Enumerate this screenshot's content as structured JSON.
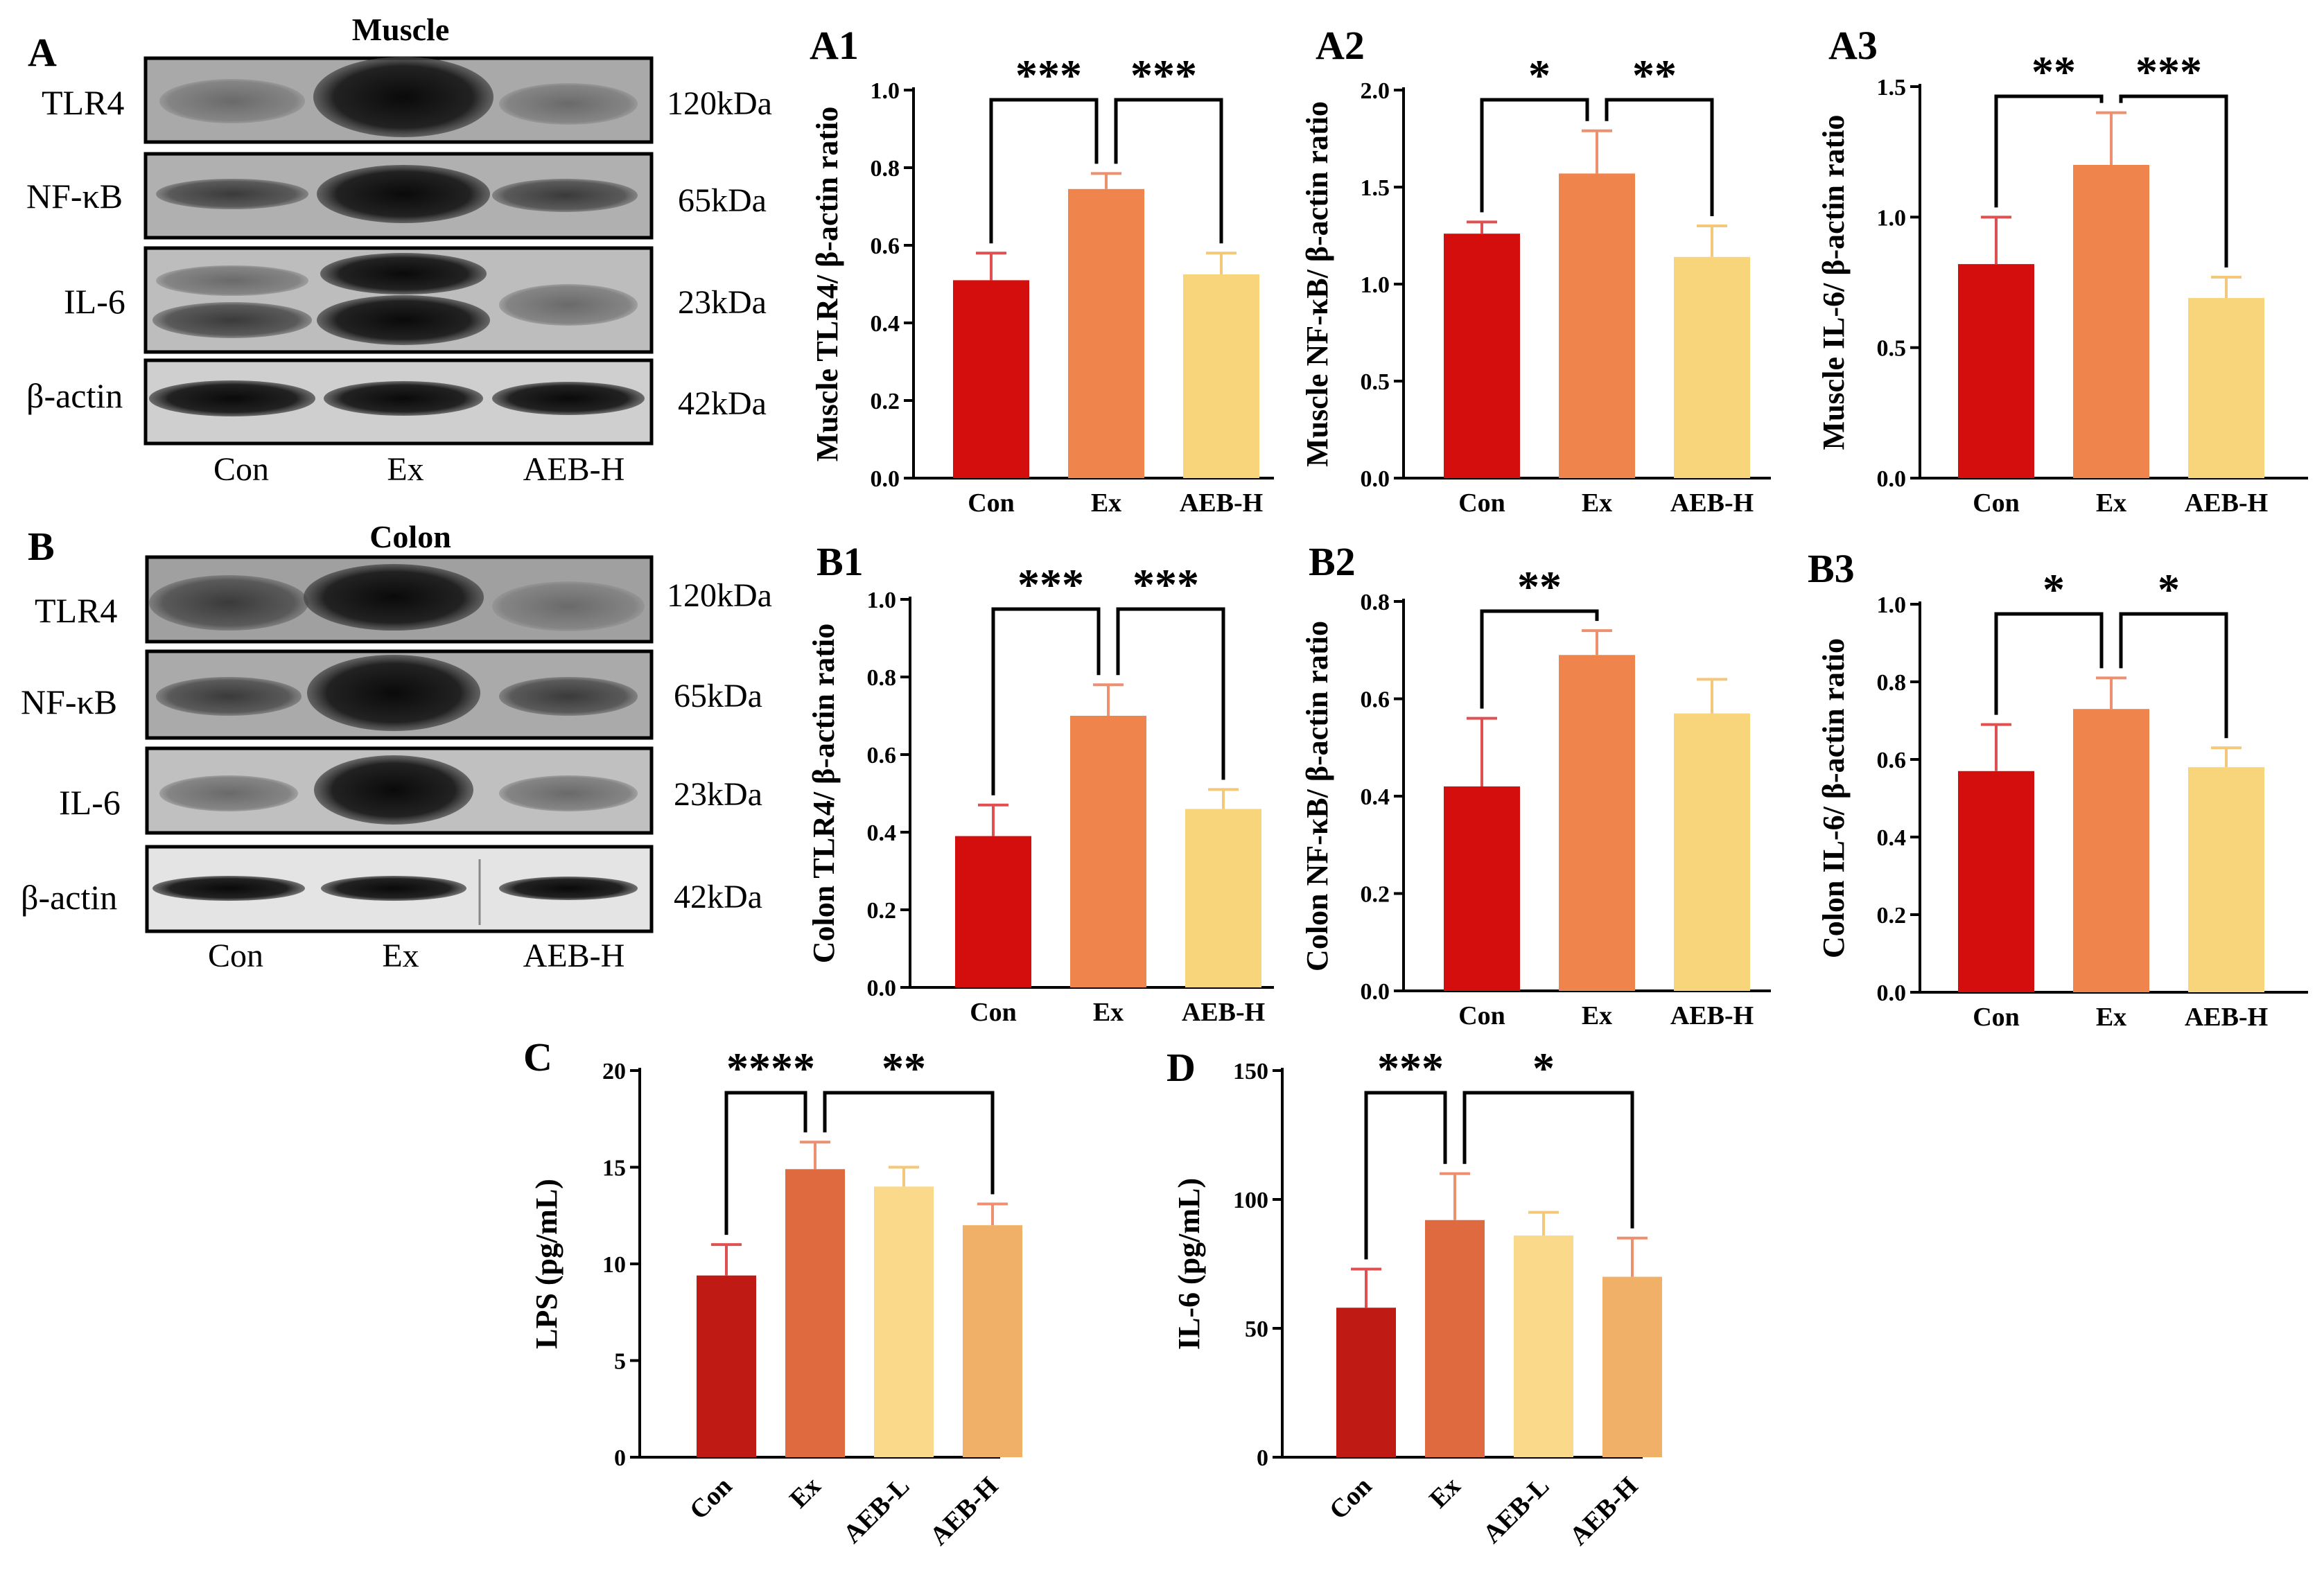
{
  "colors": {
    "con": "#d40d0d",
    "ex": "#ef844c",
    "aeb_h_top": "#f8d57a",
    "con_c": "#bf1b14",
    "ex_c": "#e06a40",
    "aeb_l_c": "#fbd98b",
    "aeb_h_c": "#f0b068",
    "err_con": "#e05050",
    "err_ex": "#ee9070",
    "err_aeb": "#f3c87a"
  },
  "blots": [
    {
      "letter": "A",
      "title": "Muscle",
      "proteins": [
        {
          "name": "TLR4",
          "kda": "120kDa"
        },
        {
          "name": "NF-κB",
          "kda": "65kDa"
        },
        {
          "name": "IL-6",
          "kda": "23kDa"
        },
        {
          "name": "β-actin",
          "kda": "42kDa"
        }
      ],
      "lanes": [
        "Con",
        "Ex",
        "AEB-H"
      ]
    },
    {
      "letter": "B",
      "title": "Colon",
      "proteins": [
        {
          "name": "TLR4",
          "kda": "120kDa"
        },
        {
          "name": "NF-κB",
          "kda": "65kDa"
        },
        {
          "name": "IL-6",
          "kda": "23kDa"
        },
        {
          "name": "β-actin",
          "kda": "42kDa"
        }
      ],
      "lanes": [
        "Con",
        "Ex",
        "AEB-H"
      ]
    }
  ],
  "chart_data": [
    {
      "id": "A1",
      "type": "bar",
      "ylabel": "Muscle TLR4/ β-actin ratio",
      "categories": [
        "Con",
        "Ex",
        "AEB-H"
      ],
      "values": [
        0.51,
        0.745,
        0.525
      ],
      "errors": [
        0.07,
        0.04,
        0.055
      ],
      "ylim": [
        0,
        1.0
      ],
      "ticks": [
        "0.0",
        "0.2",
        "0.4",
        "0.6",
        "0.8",
        "1.0"
      ],
      "sig": [
        {
          "from": 0,
          "to": 1,
          "label": "***"
        },
        {
          "from": 1,
          "to": 2,
          "label": "***"
        }
      ]
    },
    {
      "id": "A2",
      "type": "bar",
      "ylabel": "Muscle NF-κB/ β-actin ratio",
      "categories": [
        "Con",
        "Ex",
        "AEB-H"
      ],
      "values": [
        1.26,
        1.57,
        1.14
      ],
      "errors": [
        0.06,
        0.22,
        0.16
      ],
      "ylim": [
        0,
        2.0
      ],
      "ticks": [
        "0.0",
        "0.5",
        "1.0",
        "1.5",
        "2.0"
      ],
      "sig": [
        {
          "from": 0,
          "to": 1,
          "label": "*"
        },
        {
          "from": 1,
          "to": 2,
          "label": "**"
        }
      ]
    },
    {
      "id": "A3",
      "type": "bar",
      "ylabel": "Muscle IL-6/ β-actin ratio",
      "categories": [
        "Con",
        "Ex",
        "AEB-H"
      ],
      "values": [
        0.82,
        1.2,
        0.69
      ],
      "errors": [
        0.18,
        0.2,
        0.08
      ],
      "ylim": [
        0,
        1.5
      ],
      "ticks": [
        "0.0",
        "0.5",
        "1.0",
        "1.5"
      ],
      "sig": [
        {
          "from": 0,
          "to": 1,
          "label": "**"
        },
        {
          "from": 1,
          "to": 2,
          "label": "***"
        }
      ]
    },
    {
      "id": "B1",
      "type": "bar",
      "ylabel": "Colon TLR4/ β-actin ratio",
      "categories": [
        "Con",
        "Ex",
        "AEB-H"
      ],
      "values": [
        0.39,
        0.7,
        0.46
      ],
      "errors": [
        0.08,
        0.08,
        0.05
      ],
      "ylim": [
        0,
        1.0
      ],
      "ticks": [
        "0.0",
        "0.2",
        "0.4",
        "0.6",
        "0.8",
        "1.0"
      ],
      "sig": [
        {
          "from": 0,
          "to": 1,
          "label": "***"
        },
        {
          "from": 1,
          "to": 2,
          "label": "***"
        }
      ]
    },
    {
      "id": "B2",
      "type": "bar",
      "ylabel": "Colon NF-κB/ β-actin ratio",
      "categories": [
        "Con",
        "Ex",
        "AEB-H"
      ],
      "values": [
        0.42,
        0.69,
        0.57
      ],
      "errors": [
        0.14,
        0.05,
        0.07
      ],
      "ylim": [
        0,
        0.8
      ],
      "ticks": [
        "0.0",
        "0.2",
        "0.4",
        "0.6",
        "0.8"
      ],
      "sig": [
        {
          "from": 0,
          "to": 1,
          "label": "**"
        }
      ]
    },
    {
      "id": "B3",
      "type": "bar",
      "ylabel": "Colon IL-6/ β-actin ratio",
      "categories": [
        "Con",
        "Ex",
        "AEB-H"
      ],
      "values": [
        0.57,
        0.73,
        0.58
      ],
      "errors": [
        0.12,
        0.08,
        0.05
      ],
      "ylim": [
        0,
        1.0
      ],
      "ticks": [
        "0.0",
        "0.2",
        "0.4",
        "0.6",
        "0.8",
        "1.0"
      ],
      "sig": [
        {
          "from": 0,
          "to": 1,
          "label": "*"
        },
        {
          "from": 1,
          "to": 2,
          "label": "*"
        }
      ]
    },
    {
      "id": "C",
      "type": "bar",
      "ylabel": "LPS (pg/mL)",
      "categories": [
        "Con",
        "Ex",
        "AEB-L",
        "AEB-H"
      ],
      "values": [
        9.4,
        14.9,
        14.0,
        12.0
      ],
      "errors": [
        1.6,
        1.4,
        1.0,
        1.1
      ],
      "ylim": [
        0,
        20
      ],
      "ticks": [
        "0",
        "5",
        "10",
        "15",
        "20"
      ],
      "sig": [
        {
          "from": 0,
          "to": 1,
          "label": "****"
        },
        {
          "from": 1,
          "to": 3,
          "label": "**"
        }
      ]
    },
    {
      "id": "D",
      "type": "bar",
      "ylabel": "IL-6 (pg/mL)",
      "categories": [
        "Con",
        "Ex",
        "AEB-L",
        "AEB-H"
      ],
      "values": [
        58,
        92,
        86,
        70
      ],
      "errors": [
        15,
        18,
        9,
        15
      ],
      "ylim": [
        0,
        150
      ],
      "ticks": [
        "0",
        "50",
        "100",
        "150"
      ],
      "sig": [
        {
          "from": 0,
          "to": 1,
          "label": "***"
        },
        {
          "from": 1,
          "to": 3,
          "label": "*"
        }
      ]
    }
  ]
}
